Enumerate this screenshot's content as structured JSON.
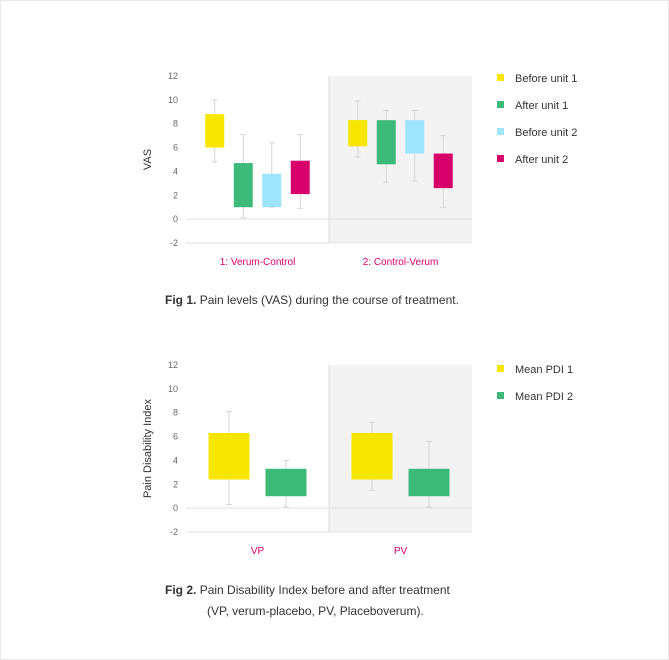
{
  "colors": {
    "before_unit_1": "#f7e600",
    "after_unit_1": "#3dba7a",
    "before_unit_2": "#9ee4fb",
    "after_unit_2": "#d8006b",
    "category_label": "#d8006b",
    "panel_shade": "#f3f3f3",
    "whisker": "#d6d6d6"
  },
  "figure1": {
    "caption_label": "Fig 1.",
    "caption_text": "Pain levels (VAS) during the course of treatment."
  },
  "figure2": {
    "caption_label": "Fig 2.",
    "caption_text_line1": "Pain Disability Index before and after treatment",
    "caption_text_line2": "(VP, verum-placebo, PV, Placeboverum)."
  },
  "chart_data": [
    {
      "type": "box",
      "title": "",
      "xlabel": "",
      "ylabel": "VAS",
      "ylim": [
        -2,
        12
      ],
      "yticks": [
        -2,
        0,
        2,
        4,
        6,
        8,
        10,
        12
      ],
      "grid": false,
      "legend_position": "right",
      "shaded_group": 1,
      "categories": [
        "1: Verum-Control",
        "2: Control-Verum"
      ],
      "series": [
        {
          "name": "Before unit 1",
          "color": "#f7e600",
          "boxes": [
            {
              "low": 6,
              "high": 8.8,
              "whisker_low": 4.8,
              "whisker_high": 10
            },
            {
              "low": 6.1,
              "high": 8.3,
              "whisker_low": 5.2,
              "whisker_high": 9.9
            }
          ]
        },
        {
          "name": "After unit 1",
          "color": "#3dba7a",
          "boxes": [
            {
              "low": 1,
              "high": 4.7,
              "whisker_low": 0.1,
              "whisker_high": 7.1
            },
            {
              "low": 4.6,
              "high": 8.3,
              "whisker_low": 3.1,
              "whisker_high": 9.1
            }
          ]
        },
        {
          "name": "Before unit 2",
          "color": "#9ee4fb",
          "boxes": [
            {
              "low": 1,
              "high": 3.8,
              "whisker_low": 1,
              "whisker_high": 6.4
            },
            {
              "low": 5.5,
              "high": 8.3,
              "whisker_low": 3.2,
              "whisker_high": 9.1
            }
          ]
        },
        {
          "name": "After unit 2",
          "color": "#d8006b",
          "boxes": [
            {
              "low": 2.1,
              "high": 4.9,
              "whisker_low": 0.9,
              "whisker_high": 7.1
            },
            {
              "low": 2.6,
              "high": 5.5,
              "whisker_low": 1,
              "whisker_high": 7
            }
          ]
        }
      ]
    },
    {
      "type": "box",
      "title": "",
      "xlabel": "",
      "ylabel": "Pain Disability Index",
      "ylim": [
        -2,
        12
      ],
      "yticks": [
        -2,
        0,
        2,
        4,
        6,
        8,
        10,
        12
      ],
      "grid": false,
      "legend_position": "right",
      "shaded_group": 1,
      "categories": [
        "VP",
        "PV"
      ],
      "series": [
        {
          "name": "Mean PDI 1",
          "color": "#f7e600",
          "boxes": [
            {
              "low": 2.4,
              "high": 6.3,
              "whisker_low": 0.3,
              "whisker_high": 8.1
            },
            {
              "low": 2.4,
              "high": 6.3,
              "whisker_low": 1.5,
              "whisker_high": 7.2
            }
          ]
        },
        {
          "name": "Mean PDI 2",
          "color": "#3dba7a",
          "boxes": [
            {
              "low": 1,
              "high": 3.3,
              "whisker_low": 0.1,
              "whisker_high": 4
            },
            {
              "low": 1,
              "high": 3.3,
              "whisker_low": 0.1,
              "whisker_high": 5.6
            }
          ]
        }
      ]
    }
  ]
}
